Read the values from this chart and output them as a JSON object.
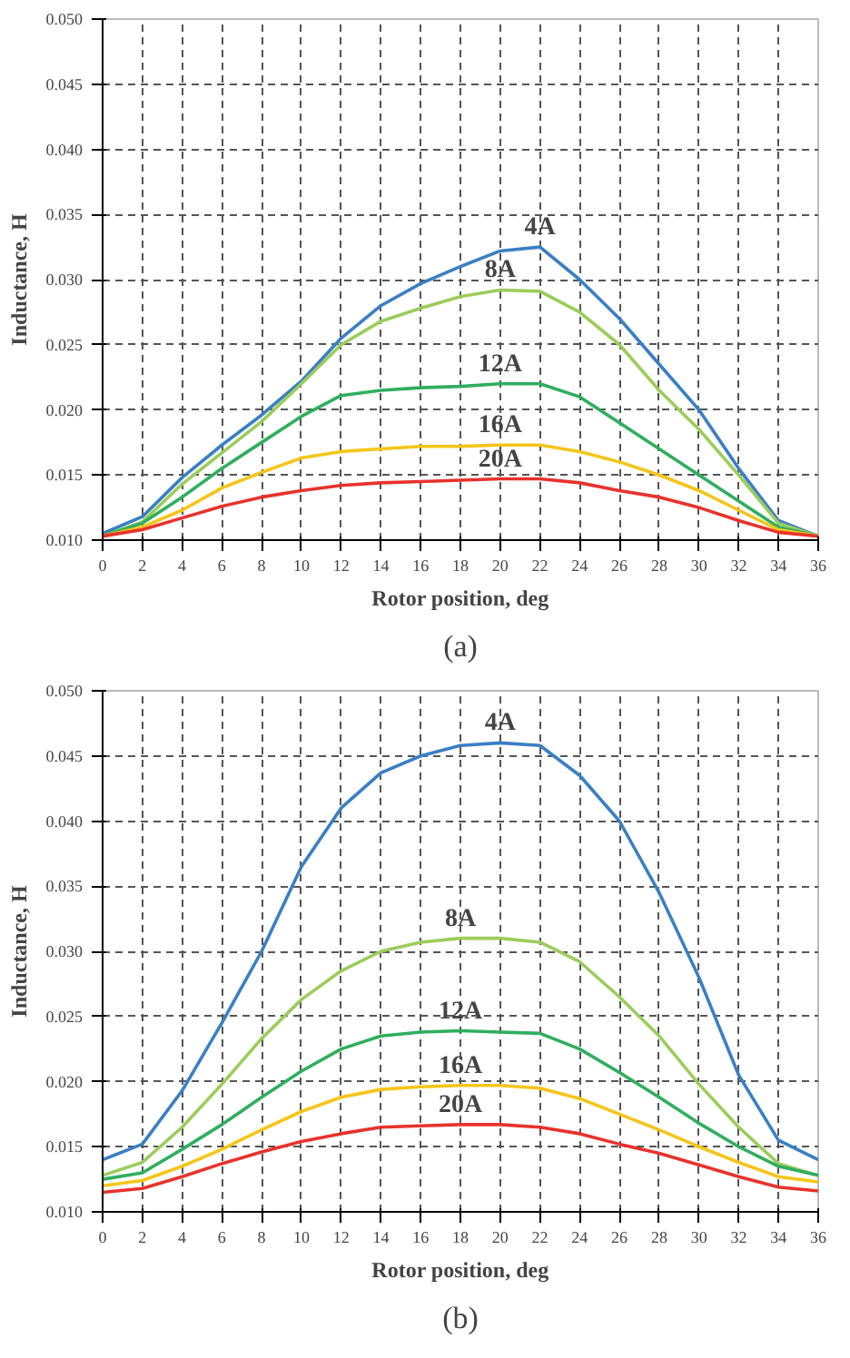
{
  "chart_data": [
    {
      "type": "line",
      "title": "(a)",
      "xlabel": "Rotor position, deg",
      "ylabel": "Inductance, H",
      "x": [
        0,
        2,
        4,
        6,
        8,
        10,
        12,
        14,
        16,
        18,
        20,
        22,
        24,
        26,
        28,
        30,
        32,
        34,
        36
      ],
      "xlim": [
        0,
        36
      ],
      "xticks": [
        0,
        2,
        4,
        6,
        8,
        10,
        12,
        14,
        16,
        18,
        20,
        22,
        24,
        26,
        28,
        30,
        32,
        34,
        36
      ],
      "ylim": [
        0.01,
        0.05
      ],
      "yticks": [
        {
          "value": 0.01,
          "label": "0.010"
        },
        {
          "value": 0.015,
          "label": "0.015"
        },
        {
          "value": 0.02,
          "label": "0.020"
        },
        {
          "value": 0.025,
          "label": "0.025"
        },
        {
          "value": 0.03,
          "label": "0.030"
        },
        {
          "value": 0.035,
          "label": "0.035"
        },
        {
          "value": 0.04,
          "label": "0.040"
        },
        {
          "value": 0.045,
          "label": "0.045"
        },
        {
          "value": 0.05,
          "label": "0.050"
        }
      ],
      "grid": true,
      "legend": false,
      "marker": "none",
      "line_style": "solid",
      "series": [
        {
          "name": "4A",
          "color": "#3a7fc4",
          "values": [
            0.0105,
            0.0118,
            0.0148,
            0.0173,
            0.0196,
            0.0222,
            0.0255,
            0.028,
            0.0297,
            0.031,
            0.0322,
            0.0325,
            0.03,
            0.027,
            0.0235,
            0.02,
            0.0155,
            0.0115,
            0.0103
          ]
        },
        {
          "name": "8A",
          "color": "#9ccc5a",
          "values": [
            0.0103,
            0.0114,
            0.0143,
            0.0167,
            0.0191,
            0.022,
            0.025,
            0.0268,
            0.0278,
            0.0287,
            0.0292,
            0.0291,
            0.0275,
            0.025,
            0.0215,
            0.0185,
            0.015,
            0.0113,
            0.0103
          ]
        },
        {
          "name": "12A",
          "color": "#2fae5f",
          "values": [
            0.0103,
            0.0113,
            0.0133,
            0.0155,
            0.0175,
            0.0195,
            0.0211,
            0.0215,
            0.0217,
            0.0218,
            0.022,
            0.022,
            0.021,
            0.019,
            0.017,
            0.015,
            0.013,
            0.011,
            0.0103
          ]
        },
        {
          "name": "16A",
          "color": "#f5c518",
          "values": [
            0.0103,
            0.011,
            0.0123,
            0.014,
            0.0152,
            0.0163,
            0.0168,
            0.017,
            0.0172,
            0.0172,
            0.0173,
            0.0173,
            0.0168,
            0.016,
            0.015,
            0.0138,
            0.0123,
            0.0108,
            0.0103
          ]
        },
        {
          "name": "20A",
          "color": "#e8322c",
          "values": [
            0.0103,
            0.0108,
            0.0117,
            0.0126,
            0.0133,
            0.0138,
            0.0142,
            0.0144,
            0.0145,
            0.0146,
            0.0147,
            0.0147,
            0.0144,
            0.0138,
            0.0133,
            0.0125,
            0.0115,
            0.0106,
            0.0103
          ]
        }
      ]
    },
    {
      "type": "line",
      "title": "(b)",
      "xlabel": "Rotor position, deg",
      "ylabel": "Inductance, H",
      "x": [
        0,
        2,
        4,
        6,
        8,
        10,
        12,
        14,
        16,
        18,
        20,
        22,
        24,
        26,
        28,
        30,
        32,
        34,
        36
      ],
      "xlim": [
        0,
        36
      ],
      "xticks": [
        0,
        2,
        4,
        6,
        8,
        10,
        12,
        14,
        16,
        18,
        20,
        22,
        24,
        26,
        28,
        30,
        32,
        34,
        36
      ],
      "ylim": [
        0.01,
        0.05
      ],
      "yticks": [
        {
          "value": 0.01,
          "label": "0.010"
        },
        {
          "value": 0.015,
          "label": "0.015"
        },
        {
          "value": 0.02,
          "label": "0.020"
        },
        {
          "value": 0.025,
          "label": "0.025"
        },
        {
          "value": 0.03,
          "label": "0.030"
        },
        {
          "value": 0.035,
          "label": "0.035"
        },
        {
          "value": 0.04,
          "label": "0.040"
        },
        {
          "value": 0.045,
          "label": "0.045"
        },
        {
          "value": 0.05,
          "label": "0.050"
        }
      ],
      "grid": true,
      "legend": false,
      "marker": "none",
      "line_style": "solid",
      "series": [
        {
          "name": "4A",
          "color": "#3a7fc4",
          "values": [
            0.014,
            0.0152,
            0.0193,
            0.0245,
            0.03,
            0.0365,
            0.041,
            0.0437,
            0.045,
            0.0458,
            0.046,
            0.0458,
            0.0435,
            0.04,
            0.0345,
            0.028,
            0.0205,
            0.0155,
            0.014
          ]
        },
        {
          "name": "8A",
          "color": "#9ccc5a",
          "values": [
            0.0128,
            0.0138,
            0.0165,
            0.0198,
            0.0233,
            0.0263,
            0.0285,
            0.03,
            0.0307,
            0.031,
            0.031,
            0.0307,
            0.0292,
            0.0265,
            0.0235,
            0.0198,
            0.0165,
            0.0137,
            0.0128
          ]
        },
        {
          "name": "12A",
          "color": "#2fae5f",
          "values": [
            0.0125,
            0.013,
            0.0148,
            0.0167,
            0.0188,
            0.0208,
            0.0225,
            0.0235,
            0.0238,
            0.0239,
            0.0238,
            0.0237,
            0.0225,
            0.0207,
            0.0188,
            0.0168,
            0.015,
            0.0135,
            0.0128
          ]
        },
        {
          "name": "16A",
          "color": "#f5c518",
          "values": [
            0.012,
            0.0124,
            0.0135,
            0.0148,
            0.0163,
            0.0177,
            0.0188,
            0.0194,
            0.0196,
            0.0197,
            0.0197,
            0.0195,
            0.0187,
            0.0175,
            0.0163,
            0.015,
            0.0138,
            0.0127,
            0.0123
          ]
        },
        {
          "name": "20A",
          "color": "#e8322c",
          "values": [
            0.0115,
            0.0118,
            0.0127,
            0.0137,
            0.0146,
            0.0154,
            0.016,
            0.0165,
            0.0166,
            0.0167,
            0.0167,
            0.0165,
            0.016,
            0.0152,
            0.0145,
            0.0136,
            0.0127,
            0.0119,
            0.0116
          ]
        }
      ]
    }
  ]
}
